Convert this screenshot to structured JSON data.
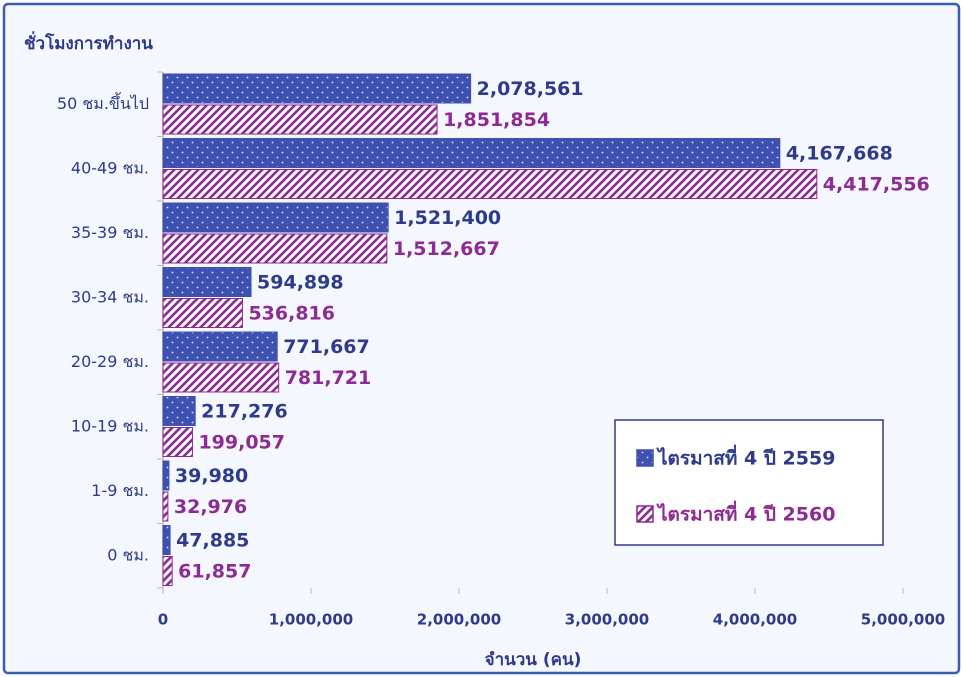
{
  "chart_data": {
    "type": "barh",
    "ylabel": "ชั่วโมงการทำงาน",
    "xlabel": "จำนวน (คน)",
    "categories": [
      "50 ชม.ขึ้นไป",
      "40-49 ชม.",
      "35-39 ชม.",
      "30-34 ชม.",
      "20-29 ชม.",
      "10-19 ชม.",
      "1-9 ชม.",
      "0 ชม."
    ],
    "series": [
      {
        "name": "ไตรมาสที่ 4 ปี 2559",
        "color": "#3f51b0",
        "values": [
          2078561,
          4167668,
          1521400,
          594898,
          771667,
          217276,
          39980,
          47885
        ],
        "value_labels": [
          "2,078,561",
          "4,167,668",
          "1,521,400",
          "594,898",
          "771,667",
          "217,276",
          "39,980",
          "47,885"
        ]
      },
      {
        "name": "ไตรมาสที่ 4 ปี 2560",
        "color": "#8e2a93",
        "values": [
          1851854,
          4417556,
          1512667,
          536816,
          781721,
          199057,
          32976,
          61857
        ],
        "value_labels": [
          "1,851,854",
          "4,417,556",
          "1,512,667",
          "536,816",
          "781,721",
          "199,057",
          "32,976",
          "61,857"
        ]
      }
    ],
    "xlim": [
      0,
      5000000
    ],
    "xticks": [
      0,
      {
        "value": 1000000,
        "label": "1,000,000"
      },
      {
        "value": 2000000,
        "label": "2,000,000"
      },
      {
        "value": 3000000,
        "label": "3,000,000"
      },
      {
        "value": 4000000,
        "label": "4,000,000"
      },
      {
        "value": 5000000,
        "label": "5,000,000"
      }
    ]
  }
}
